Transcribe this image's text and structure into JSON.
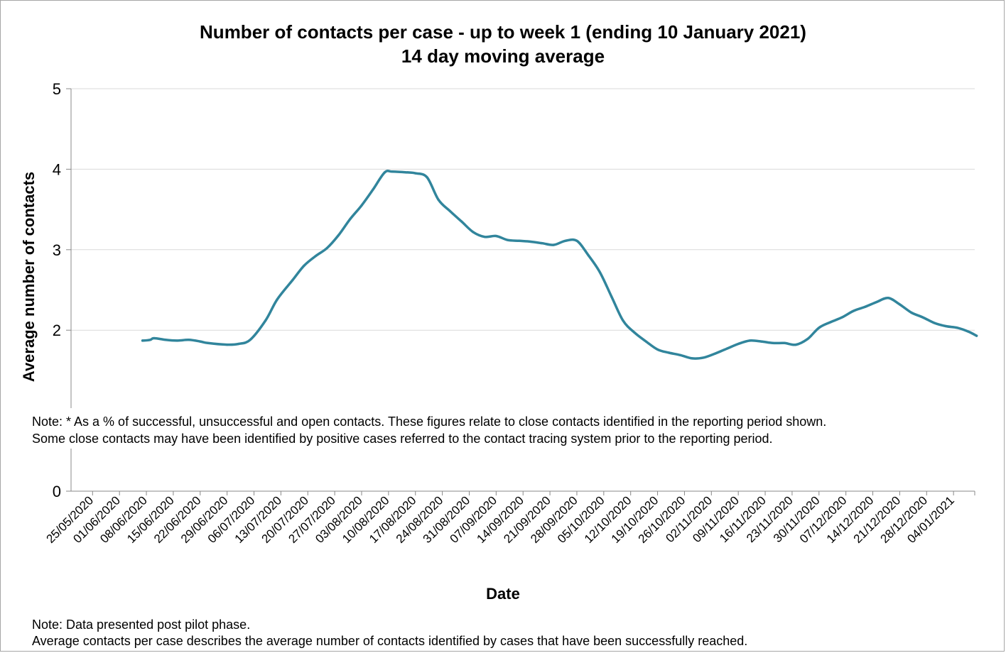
{
  "chart_data": {
    "type": "line",
    "title": "Number of contacts per case - up to week 1 (ending 10 January 2021)",
    "subtitle": "14 day moving average",
    "xlabel": "Date",
    "ylabel": "Average number of contacts",
    "ylim": [
      0,
      5
    ],
    "yticks": [
      0,
      2,
      3,
      4,
      5
    ],
    "xticks": [
      "25/05/2020",
      "01/06/2020",
      "08/06/2020",
      "15/06/2020",
      "22/06/2020",
      "29/06/2020",
      "06/07/2020",
      "13/07/2020",
      "20/07/2020",
      "27/07/2020",
      "03/08/2020",
      "10/08/2020",
      "17/08/2020",
      "24/08/2020",
      "31/08/2020",
      "07/09/2020",
      "14/09/2020",
      "21/09/2020",
      "28/09/2020",
      "05/10/2020",
      "12/10/2020",
      "19/10/2020",
      "26/10/2020",
      "02/11/2020",
      "09/11/2020",
      "16/11/2020",
      "23/11/2020",
      "30/11/2020",
      "07/12/2020",
      "14/12/2020",
      "21/12/2020",
      "28/12/2020",
      "04/01/2021"
    ],
    "grid": true,
    "series_color": "#31859c",
    "series": [
      {
        "x": [
          "07/06/2020",
          "09/06/2020",
          "10/06/2020",
          "13/06/2020",
          "16/06/2020",
          "19/06/2020",
          "22/06/2020",
          "24/06/2020",
          "29/06/2020",
          "02/07/2020",
          "05/07/2020",
          "09/07/2020",
          "12/07/2020",
          "16/07/2020",
          "19/07/2020",
          "22/07/2020",
          "25/07/2020",
          "28/07/2020",
          "31/07/2020",
          "03/08/2020",
          "06/08/2020",
          "09/08/2020",
          "11/08/2020",
          "15/08/2020",
          "17/08/2020",
          "20/08/2020",
          "23/08/2020",
          "26/08/2020",
          "29/08/2020",
          "01/09/2020",
          "04/09/2020",
          "07/09/2020",
          "10/09/2020",
          "13/09/2020",
          "16/09/2020",
          "19/09/2020",
          "22/09/2020",
          "25/09/2020",
          "28/09/2020",
          "01/10/2020",
          "04/10/2020",
          "07/10/2020",
          "10/10/2020",
          "13/10/2020",
          "16/10/2020",
          "19/10/2020",
          "22/10/2020",
          "25/10/2020",
          "28/10/2020",
          "31/10/2020",
          "03/11/2020",
          "06/11/2020",
          "09/11/2020",
          "12/11/2020",
          "15/11/2020",
          "18/11/2020",
          "21/11/2020",
          "24/11/2020",
          "27/11/2020",
          "30/11/2020",
          "03/12/2020",
          "06/12/2020",
          "09/12/2020",
          "12/12/2020",
          "15/12/2020",
          "18/12/2020",
          "21/12/2020",
          "24/12/2020",
          "27/12/2020",
          "30/12/2020",
          "02/01/2021",
          "05/01/2021",
          "08/01/2021",
          "10/01/2021"
        ],
        "y": [
          1.87,
          1.88,
          1.9,
          1.88,
          1.87,
          1.88,
          1.86,
          1.84,
          1.82,
          1.83,
          1.88,
          2.12,
          2.38,
          2.62,
          2.8,
          2.92,
          3.02,
          3.18,
          3.38,
          3.55,
          3.75,
          3.96,
          3.97,
          3.96,
          3.95,
          3.9,
          3.62,
          3.48,
          3.35,
          3.22,
          3.16,
          3.17,
          3.12,
          3.11,
          3.1,
          3.08,
          3.06,
          3.11,
          3.11,
          2.93,
          2.72,
          2.42,
          2.12,
          1.97,
          1.86,
          1.76,
          1.72,
          1.69,
          1.65,
          1.66,
          1.71,
          1.77,
          1.83,
          1.87,
          1.86,
          1.84,
          1.84,
          1.82,
          1.89,
          2.03,
          2.1,
          2.16,
          2.24,
          2.29,
          2.35,
          2.4,
          2.32,
          2.22,
          2.16,
          2.09,
          2.05,
          2.03,
          1.98,
          1.93
        ]
      }
    ]
  },
  "notes": {
    "middle_line1": "Note: * As a % of successful, unsuccessful and open contacts. These figures relate to close contacts identified in the reporting period shown.",
    "middle_line2": "Some close contacts may have been identified by positive cases referred to the contact tracing system prior to the reporting period.",
    "bottom_line1": "Note: Data presented post pilot phase.",
    "bottom_line2": "Average contacts per case describes the average number of contacts identified by cases that have been successfully reached."
  }
}
